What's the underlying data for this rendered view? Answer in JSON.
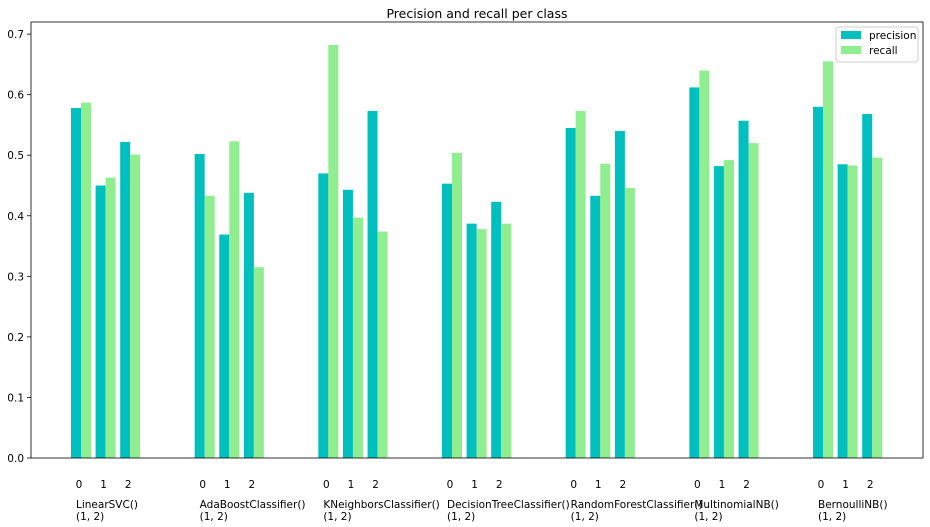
{
  "chart_data": {
    "type": "bar",
    "title": "Precision and recall per class",
    "xlabel": "",
    "ylabel": "",
    "ylim": [
      0,
      0.72
    ],
    "yticks": [
      0.0,
      0.1,
      0.2,
      0.3,
      0.4,
      0.5,
      0.6,
      0.7
    ],
    "ytick_labels": [
      "0.0",
      "0.1",
      "0.2",
      "0.3",
      "0.4",
      "0.5",
      "0.6",
      "0.7"
    ],
    "grid": false,
    "legend_position": "top-right",
    "class_labels": [
      "0",
      "1",
      "2"
    ],
    "groups": [
      {
        "name": "LinearSVC()",
        "params": "(1, 2)"
      },
      {
        "name": "AdaBoostClassifier()",
        "params": "(1, 2)"
      },
      {
        "name": "KNeighborsClassifier()",
        "params": "(1, 2)"
      },
      {
        "name": "DecisionTreeClassifier()",
        "params": "(1, 2)"
      },
      {
        "name": "RandomForestClassifier()",
        "params": "(1, 2)"
      },
      {
        "name": "MultinomialNB()",
        "params": "(1, 2)"
      },
      {
        "name": "BernoulliNB()",
        "params": "(1, 2)"
      }
    ],
    "series": [
      {
        "name": "precision",
        "color": "#00BFBF",
        "values": [
          [
            0.578,
            0.45,
            0.522
          ],
          [
            0.502,
            0.369,
            0.438
          ],
          [
            0.47,
            0.443,
            0.573
          ],
          [
            0.453,
            0.387,
            0.423
          ],
          [
            0.545,
            0.433,
            0.54
          ],
          [
            0.612,
            0.482,
            0.557
          ],
          [
            0.58,
            0.485,
            0.568
          ]
        ]
      },
      {
        "name": "recall",
        "color": "#90EE90",
        "values": [
          [
            0.587,
            0.463,
            0.501
          ],
          [
            0.433,
            0.523,
            0.315
          ],
          [
            0.682,
            0.397,
            0.374
          ],
          [
            0.504,
            0.378,
            0.387
          ],
          [
            0.573,
            0.486,
            0.446
          ],
          [
            0.64,
            0.492,
            0.52
          ],
          [
            0.655,
            0.483,
            0.496
          ]
        ]
      }
    ]
  }
}
